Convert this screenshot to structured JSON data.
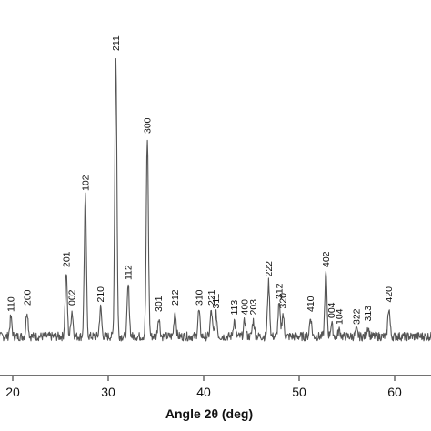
{
  "chart_data": {
    "type": "line",
    "xlabel": "Angle 2θ (deg)",
    "ylabel": "",
    "xlim": [
      15,
      64
    ],
    "ylim": [
      0,
      100
    ],
    "x_ticks": [
      20,
      30,
      40,
      50,
      60
    ],
    "grid": false,
    "line_color": "#555555",
    "baseline": 8,
    "noise_amplitude": 1.4,
    "peaks": [
      {
        "x": 19.8,
        "y": 6,
        "label": "110"
      },
      {
        "x": 21.5,
        "y": 8,
        "label": "200"
      },
      {
        "x": 25.6,
        "y": 20,
        "label": "201"
      },
      {
        "x": 26.2,
        "y": 8,
        "label": "002"
      },
      {
        "x": 27.6,
        "y": 44,
        "label": "102"
      },
      {
        "x": 29.2,
        "y": 9,
        "label": "210"
      },
      {
        "x": 30.8,
        "y": 88,
        "label": "211"
      },
      {
        "x": 32.1,
        "y": 16,
        "label": "112"
      },
      {
        "x": 34.1,
        "y": 62,
        "label": "300"
      },
      {
        "x": 35.3,
        "y": 6,
        "label": "301"
      },
      {
        "x": 37.0,
        "y": 8,
        "label": "212"
      },
      {
        "x": 39.5,
        "y": 8,
        "label": "310"
      },
      {
        "x": 40.8,
        "y": 8,
        "label": "221"
      },
      {
        "x": 41.3,
        "y": 7,
        "label": "311"
      },
      {
        "x": 43.2,
        "y": 5,
        "label": "113"
      },
      {
        "x": 44.3,
        "y": 5,
        "label": "400"
      },
      {
        "x": 45.2,
        "y": 5,
        "label": "203"
      },
      {
        "x": 46.8,
        "y": 17,
        "label": "222"
      },
      {
        "x": 47.9,
        "y": 10,
        "label": "312"
      },
      {
        "x": 48.3,
        "y": 7,
        "label": "320"
      },
      {
        "x": 51.2,
        "y": 6,
        "label": "410"
      },
      {
        "x": 52.8,
        "y": 20,
        "label": "402"
      },
      {
        "x": 53.4,
        "y": 4,
        "label": "004"
      },
      {
        "x": 54.2,
        "y": 2,
        "label": "104"
      },
      {
        "x": 56.0,
        "y": 2,
        "label": "322"
      },
      {
        "x": 57.2,
        "y": 3,
        "label": "313"
      },
      {
        "x": 59.4,
        "y": 9,
        "label": "420"
      }
    ]
  }
}
